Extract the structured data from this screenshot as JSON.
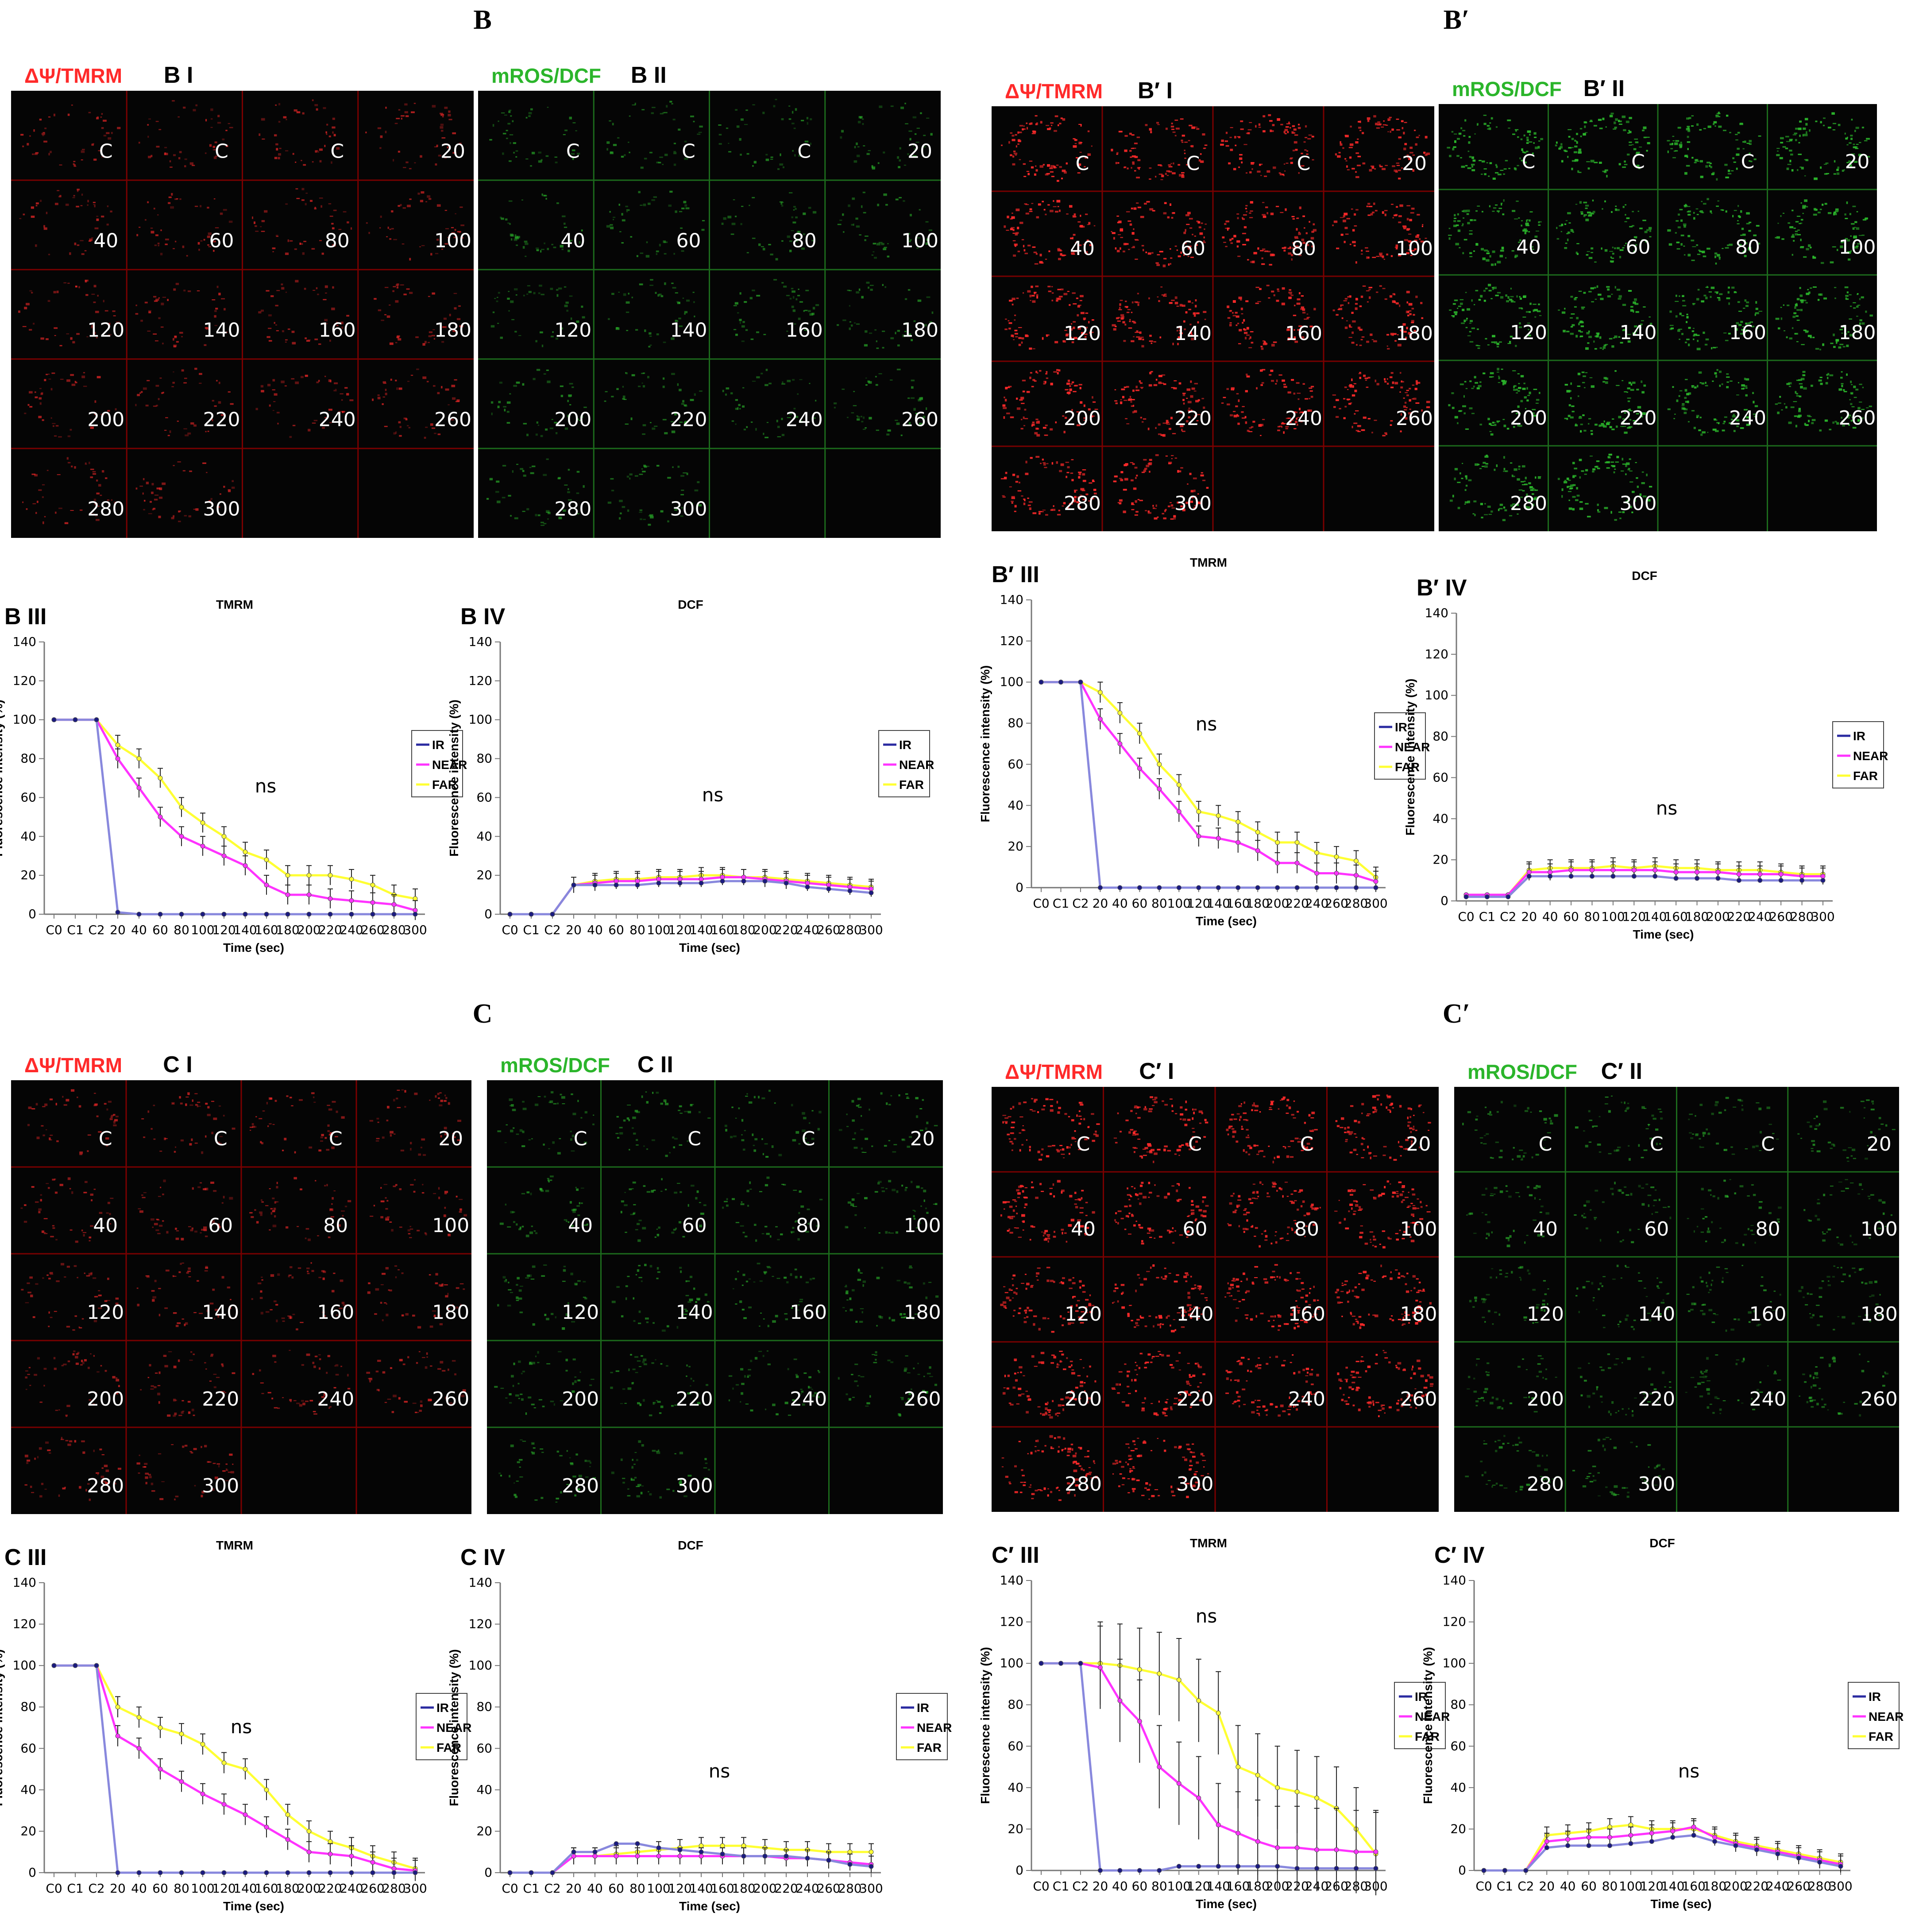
{
  "figure": {
    "titles": [
      "B",
      "B′",
      "C",
      "C′"
    ]
  },
  "time_labels": [
    "C",
    "C",
    "C",
    "20",
    "40",
    "60",
    "80",
    "100",
    "120",
    "140",
    "160",
    "180",
    "200",
    "220",
    "240",
    "260",
    "280",
    "300"
  ],
  "x_ticks": [
    "C0",
    "C1",
    "C2",
    "20",
    "40",
    "60",
    "80",
    "100",
    "120",
    "140",
    "160",
    "180",
    "200",
    "220",
    "240",
    "260",
    "280",
    "300"
  ],
  "y_ticks": [
    "0",
    "20",
    "40",
    "60",
    "80",
    "100",
    "120",
    "140"
  ],
  "xlabel": "Time (sec)",
  "ylabel": "Fluorescence intensity (%)",
  "ns": "ns",
  "legend": [
    "IR",
    "NEAR",
    "FAR"
  ],
  "colors": {
    "IR": "#2a2aa0",
    "NEAR": "#ff33ff",
    "FAR": "#ffff33",
    "red": "#ff2a2a",
    "green": "#2bb52b",
    "redline": "#7a0000",
    "greenline": "#1c6b1c"
  },
  "panels": [
    {
      "id": "B",
      "dye_red": "ΔΨ/TMRM",
      "name_red": "B I",
      "dye_green": "mROS/DCF",
      "name_green": "B II",
      "tmrm_label": "B III",
      "dcf_label": "B IV",
      "tmrm_title": "TMRM",
      "dcf_title": "DCF"
    },
    {
      "id": "Bp",
      "dye_red": "ΔΨ/TMRM",
      "name_red": "B′ I",
      "dye_green": "mROS/DCF",
      "name_green": "B′ II",
      "tmrm_label": "B′ III",
      "dcf_label": "B′ IV",
      "tmrm_title": "TMRM",
      "dcf_title": "DCF"
    },
    {
      "id": "C",
      "dye_red": "ΔΨ/TMRM",
      "name_red": "C I",
      "dye_green": "mROS/DCF",
      "name_green": "C II",
      "tmrm_label": "C III",
      "dcf_label": "C IV",
      "tmrm_title": "TMRM",
      "dcf_title": "DCF"
    },
    {
      "id": "Cp",
      "dye_red": "ΔΨ/TMRM",
      "name_red": "C′ I",
      "dye_green": "mROS/DCF",
      "name_green": "C′ II",
      "tmrm_label": "C′ III",
      "dcf_label": "C′ IV",
      "tmrm_title": "TMRM",
      "dcf_title": "DCF"
    }
  ],
  "chart_data": [
    {
      "type": "line",
      "panel": "B III",
      "title": "TMRM",
      "xlabel": "Time (sec)",
      "ylabel": "Fluorescence intensity (%)",
      "ylim": [
        0,
        140
      ],
      "categories": [
        "C0",
        "C1",
        "C2",
        "20",
        "40",
        "60",
        "80",
        "100",
        "120",
        "140",
        "160",
        "180",
        "200",
        "220",
        "240",
        "260",
        "280",
        "300"
      ],
      "annotation": "ns",
      "series": [
        {
          "name": "IR",
          "values": [
            100,
            100,
            100,
            1,
            0,
            0,
            0,
            0,
            0,
            0,
            0,
            0,
            0,
            0,
            0,
            0,
            0,
            0
          ]
        },
        {
          "name": "NEAR",
          "values": [
            100,
            100,
            100,
            80,
            65,
            50,
            40,
            35,
            30,
            25,
            15,
            10,
            10,
            8,
            7,
            6,
            5,
            2
          ]
        },
        {
          "name": "FAR",
          "values": [
            100,
            100,
            100,
            87,
            80,
            70,
            55,
            47,
            40,
            32,
            28,
            20,
            20,
            20,
            18,
            15,
            10,
            8
          ]
        }
      ]
    },
    {
      "type": "line",
      "panel": "B IV",
      "title": "DCF",
      "xlabel": "Time (sec)",
      "ylabel": "Fluorescence intensity (%)",
      "ylim": [
        0,
        140
      ],
      "categories": [
        "C0",
        "C1",
        "C2",
        "20",
        "40",
        "60",
        "80",
        "100",
        "120",
        "140",
        "160",
        "180",
        "200",
        "220",
        "240",
        "260",
        "280",
        "300"
      ],
      "annotation": "ns",
      "series": [
        {
          "name": "IR",
          "values": [
            0,
            0,
            0,
            15,
            15,
            15,
            15,
            16,
            16,
            16,
            17,
            17,
            17,
            16,
            14,
            13,
            12,
            11
          ]
        },
        {
          "name": "NEAR",
          "values": [
            0,
            0,
            0,
            15,
            16,
            17,
            17,
            18,
            18,
            18,
            19,
            19,
            18,
            17,
            16,
            15,
            14,
            13
          ]
        },
        {
          "name": "FAR",
          "values": [
            0,
            0,
            0,
            15,
            17,
            18,
            18,
            19,
            19,
            20,
            20,
            19,
            19,
            18,
            17,
            16,
            15,
            14
          ]
        }
      ]
    },
    {
      "type": "line",
      "panel": "B′ III",
      "title": "TMRM",
      "xlabel": "Time (sec)",
      "ylabel": "Fluorescence intensity (%)",
      "ylim": [
        0,
        140
      ],
      "categories": [
        "C0",
        "C1",
        "C2",
        "20",
        "40",
        "60",
        "80",
        "100",
        "120",
        "140",
        "160",
        "180",
        "200",
        "220",
        "240",
        "260",
        "280",
        "300"
      ],
      "annotation": "ns",
      "series": [
        {
          "name": "IR",
          "values": [
            100,
            100,
            100,
            0,
            0,
            0,
            0,
            0,
            0,
            0,
            0,
            0,
            0,
            0,
            0,
            0,
            0,
            0
          ]
        },
        {
          "name": "NEAR",
          "values": [
            100,
            100,
            100,
            82,
            70,
            58,
            48,
            37,
            25,
            24,
            22,
            18,
            12,
            12,
            7,
            7,
            6,
            3
          ]
        },
        {
          "name": "FAR",
          "values": [
            100,
            100,
            100,
            95,
            85,
            75,
            60,
            50,
            37,
            35,
            32,
            27,
            22,
            22,
            17,
            15,
            13,
            5
          ]
        }
      ]
    },
    {
      "type": "line",
      "panel": "B′ IV",
      "title": "DCF",
      "xlabel": "Time (sec)",
      "ylabel": "Fluorescence intensity (%)",
      "ylim": [
        0,
        140
      ],
      "categories": [
        "C0",
        "C1",
        "C2",
        "20",
        "40",
        "60",
        "80",
        "100",
        "120",
        "140",
        "160",
        "180",
        "200",
        "220",
        "240",
        "260",
        "280",
        "300"
      ],
      "annotation": "ns",
      "series": [
        {
          "name": "IR",
          "values": [
            2,
            2,
            2,
            12,
            12,
            12,
            12,
            12,
            12,
            12,
            11,
            11,
            11,
            10,
            10,
            10,
            10,
            10
          ]
        },
        {
          "name": "NEAR",
          "values": [
            3,
            3,
            3,
            14,
            14,
            15,
            15,
            15,
            15,
            15,
            14,
            14,
            14,
            13,
            13,
            13,
            12,
            12
          ]
        },
        {
          "name": "FAR",
          "values": [
            3,
            3,
            3,
            15,
            16,
            16,
            16,
            17,
            16,
            17,
            16,
            16,
            15,
            15,
            15,
            14,
            13,
            13
          ]
        }
      ]
    },
    {
      "type": "line",
      "panel": "C III",
      "title": "TMRM",
      "xlabel": "Time (sec)",
      "ylabel": "Fluorescence intensity (%)",
      "ylim": [
        0,
        140
      ],
      "categories": [
        "C0",
        "C1",
        "C2",
        "20",
        "40",
        "60",
        "80",
        "100",
        "120",
        "140",
        "160",
        "180",
        "200",
        "220",
        "240",
        "260",
        "280",
        "300"
      ],
      "annotation": "ns",
      "series": [
        {
          "name": "IR",
          "values": [
            100,
            100,
            100,
            0,
            0,
            0,
            0,
            0,
            0,
            0,
            0,
            0,
            0,
            0,
            0,
            0,
            0,
            0
          ]
        },
        {
          "name": "NEAR",
          "values": [
            100,
            100,
            100,
            66,
            60,
            50,
            44,
            38,
            33,
            28,
            22,
            16,
            10,
            9,
            8,
            5,
            2,
            1
          ]
        },
        {
          "name": "FAR",
          "values": [
            100,
            100,
            100,
            80,
            75,
            70,
            67,
            62,
            53,
            50,
            40,
            28,
            20,
            15,
            12,
            8,
            5,
            2
          ]
        }
      ]
    },
    {
      "type": "line",
      "panel": "C IV",
      "title": "DCF",
      "xlabel": "Time (sec)",
      "ylabel": "Fluorescence intensity (%)",
      "ylim": [
        0,
        140
      ],
      "categories": [
        "C0",
        "C1",
        "C2",
        "20",
        "40",
        "60",
        "80",
        "100",
        "120",
        "140",
        "160",
        "180",
        "200",
        "220",
        "240",
        "260",
        "280",
        "300"
      ],
      "annotation": "ns",
      "series": [
        {
          "name": "IR",
          "values": [
            0,
            0,
            0,
            10,
            10,
            14,
            14,
            12,
            11,
            10,
            9,
            8,
            8,
            8,
            7,
            6,
            4,
            3
          ]
        },
        {
          "name": "NEAR",
          "values": [
            0,
            0,
            0,
            8,
            8,
            8,
            8,
            8,
            8,
            8,
            8,
            8,
            8,
            7,
            7,
            6,
            5,
            4
          ]
        },
        {
          "name": "FAR",
          "values": [
            0,
            0,
            0,
            8,
            8,
            9,
            10,
            11,
            12,
            13,
            13,
            13,
            12,
            11,
            11,
            10,
            10,
            10
          ]
        }
      ]
    },
    {
      "type": "line",
      "panel": "C′ III",
      "title": "TMRM",
      "xlabel": "Time (sec)",
      "ylabel": "Fluorescence intensity (%)",
      "ylim": [
        0,
        140
      ],
      "categories": [
        "C0",
        "C1",
        "C2",
        "20",
        "40",
        "60",
        "80",
        "100",
        "120",
        "140",
        "160",
        "180",
        "200",
        "220",
        "240",
        "260",
        "280",
        "300"
      ],
      "annotation": "ns",
      "series": [
        {
          "name": "IR",
          "values": [
            100,
            100,
            100,
            0,
            0,
            0,
            0,
            2,
            2,
            2,
            2,
            2,
            2,
            1,
            1,
            1,
            1,
            1
          ]
        },
        {
          "name": "NEAR",
          "values": [
            100,
            100,
            100,
            98,
            82,
            72,
            50,
            42,
            35,
            22,
            18,
            14,
            11,
            11,
            10,
            10,
            9,
            9
          ]
        },
        {
          "name": "FAR",
          "values": [
            100,
            100,
            100,
            100,
            99,
            97,
            95,
            92,
            82,
            76,
            50,
            46,
            40,
            38,
            35,
            30,
            20,
            8
          ]
        }
      ]
    },
    {
      "type": "line",
      "panel": "C′ IV",
      "title": "DCF",
      "xlabel": "Time (sec)",
      "ylabel": "Fluorescence intensity (%)",
      "ylim": [
        0,
        140
      ],
      "categories": [
        "C0",
        "C1",
        "C2",
        "20",
        "40",
        "60",
        "80",
        "100",
        "120",
        "140",
        "160",
        "180",
        "200",
        "220",
        "240",
        "260",
        "280",
        "300"
      ],
      "annotation": "ns",
      "series": [
        {
          "name": "IR",
          "values": [
            0,
            0,
            0,
            11,
            12,
            12,
            12,
            13,
            14,
            16,
            17,
            14,
            12,
            10,
            8,
            6,
            4,
            2
          ]
        },
        {
          "name": "NEAR",
          "values": [
            0,
            0,
            0,
            14,
            15,
            16,
            16,
            17,
            18,
            19,
            21,
            16,
            13,
            11,
            9,
            7,
            5,
            3
          ]
        },
        {
          "name": "FAR",
          "values": [
            0,
            0,
            0,
            17,
            18,
            19,
            21,
            22,
            20,
            20,
            20,
            17,
            14,
            12,
            10,
            8,
            6,
            4
          ]
        }
      ]
    }
  ]
}
